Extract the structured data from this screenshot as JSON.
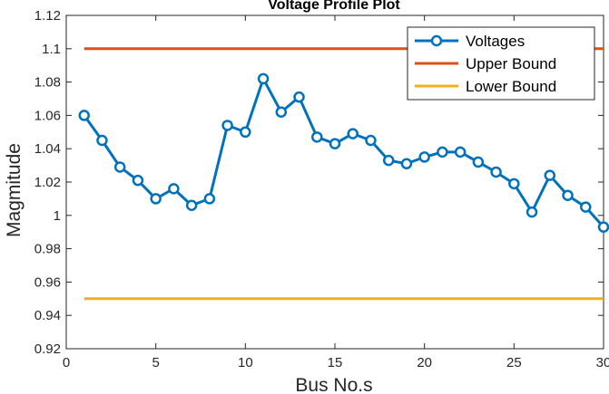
{
  "chart_data": {
    "type": "line",
    "title": "Voltage Profile Plot",
    "xlabel": "Bus No.s",
    "ylabel": "Magmitude",
    "xlim": [
      0,
      30
    ],
    "ylim": [
      0.92,
      1.12
    ],
    "xticks": [
      0,
      5,
      10,
      15,
      20,
      25,
      30
    ],
    "xtick_labels": [
      "0",
      "5",
      "10",
      "15",
      "20",
      "25",
      "30"
    ],
    "yticks": [
      0.92,
      0.94,
      0.96,
      0.98,
      1.0,
      1.02,
      1.04,
      1.06,
      1.08,
      1.1,
      1.12
    ],
    "ytick_labels": [
      "0.92",
      "0.94",
      "0.96",
      "0.98",
      "1",
      "1.02",
      "1.04",
      "1.06",
      "1.08",
      "1.1",
      "1.12"
    ],
    "grid": false,
    "legend_position": "top-right",
    "series": [
      {
        "name": "Voltages",
        "color": "#0072BD",
        "marker": "circle",
        "x": [
          1,
          2,
          3,
          4,
          5,
          6,
          7,
          8,
          9,
          10,
          11,
          12,
          13,
          14,
          15,
          16,
          17,
          18,
          19,
          20,
          21,
          22,
          23,
          24,
          25,
          26,
          27,
          28,
          29,
          30
        ],
        "y": [
          1.06,
          1.045,
          1.029,
          1.021,
          1.01,
          1.016,
          1.006,
          1.01,
          1.054,
          1.05,
          1.082,
          1.062,
          1.071,
          1.047,
          1.043,
          1.049,
          1.045,
          1.033,
          1.031,
          1.035,
          1.038,
          1.038,
          1.032,
          1.026,
          1.019,
          1.002,
          1.024,
          1.012,
          1.005,
          0.993
        ]
      },
      {
        "name": "Upper Bound",
        "color": "#D95319",
        "marker": "none",
        "x": [
          1,
          30
        ],
        "y": [
          1.1,
          1.1
        ]
      },
      {
        "name": "Lower Bound",
        "color": "#EDB120",
        "marker": "none",
        "x": [
          1,
          30
        ],
        "y": [
          0.95,
          0.95
        ]
      }
    ]
  }
}
